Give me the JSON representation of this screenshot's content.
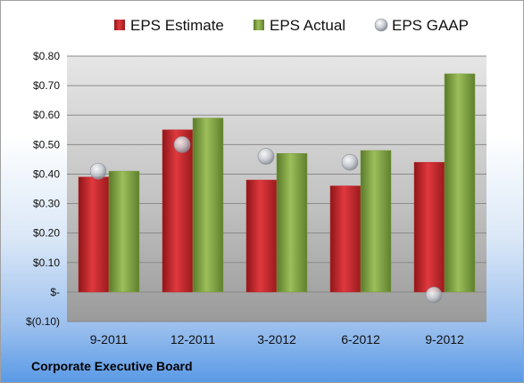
{
  "footer": {
    "company": "Corporate Executive Board"
  },
  "colors": {
    "estimate": "#c0282d",
    "actual": "#7e9e3e",
    "gaap": "#b8bcc4"
  },
  "chart_data": {
    "type": "bar",
    "title": "",
    "xlabel": "",
    "ylabel": "",
    "categories": [
      "9-2011",
      "12-2011",
      "3-2012",
      "6-2012",
      "9-2012"
    ],
    "series": [
      {
        "name": "EPS Estimate",
        "kind": "bar",
        "values": [
          0.39,
          0.55,
          0.38,
          0.36,
          0.44
        ]
      },
      {
        "name": "EPS Actual",
        "kind": "bar",
        "values": [
          0.41,
          0.59,
          0.47,
          0.48,
          0.74
        ]
      },
      {
        "name": "EPS GAAP",
        "kind": "marker",
        "values": [
          0.41,
          0.5,
          0.46,
          0.44,
          -0.01
        ]
      }
    ],
    "ylim": [
      -0.1,
      0.8
    ],
    "yticks": [
      -0.1,
      0.0,
      0.1,
      0.2,
      0.3,
      0.4,
      0.5,
      0.6,
      0.7,
      0.8
    ],
    "ytick_labels": [
      "$(0.10)",
      "$-",
      "$0.10",
      "$0.20",
      "$0.30",
      "$0.40",
      "$0.50",
      "$0.60",
      "$0.70",
      "$0.80"
    ],
    "grid": true,
    "legend": "top"
  }
}
